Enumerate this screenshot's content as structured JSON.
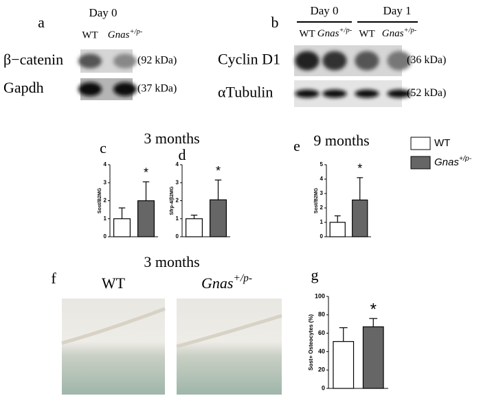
{
  "blots": [
    {
      "panel": "a",
      "days": [
        "Day 0"
      ],
      "lanes": [
        "WT",
        {
          "base": "Gnas",
          "sup": "+/p-"
        }
      ],
      "rows": [
        {
          "protein": "β−catenin",
          "size": "(92 kDa)"
        },
        {
          "protein": "Gapdh",
          "size": "(37 kDa)"
        }
      ]
    },
    {
      "panel": "b",
      "days": [
        "Day 0",
        "Day 1"
      ],
      "lanes": [
        "WT",
        {
          "base": "Gnas",
          "sup": "+/p-"
        },
        "WT",
        {
          "base": "Gnas",
          "sup": "+/p-"
        }
      ],
      "rows": [
        {
          "protein": "Cyclin D1",
          "size": "(36 kDa)"
        },
        {
          "protein": "αTubulin",
          "size": "(52 kDa)"
        }
      ]
    }
  ],
  "legend": [
    {
      "name": "WT",
      "color": "#ffffff"
    },
    {
      "name": {
        "base": "Gnas",
        "sup": "+/p-"
      },
      "color": "#666666"
    }
  ],
  "histology": {
    "panel": "f",
    "title": "3 months",
    "images": [
      "WT",
      {
        "base": "Gnas",
        "sup": "+/p-"
      }
    ]
  },
  "chart_data": [
    {
      "type": "bar",
      "panel": "c",
      "title": "3 months",
      "ylabel": "Sost/B2MG",
      "ylim": [
        0,
        4
      ],
      "yticks": [
        0,
        1,
        2,
        3,
        4
      ],
      "values": [
        1,
        2
      ],
      "errors": [
        0.6,
        1.05
      ],
      "annotation": "*"
    },
    {
      "type": "bar",
      "panel": "d",
      "ylabel": "Sfrp-4/β2MG",
      "ylim": [
        0,
        4
      ],
      "yticks": [
        0,
        1,
        2,
        3,
        4
      ],
      "values": [
        1,
        2.05
      ],
      "errors": [
        0.2,
        1.1
      ],
      "annotation": "*"
    },
    {
      "type": "bar",
      "panel": "e",
      "title": "9 months",
      "ylabel": "Sost/B2MG",
      "ylim": [
        0,
        5
      ],
      "yticks": [
        0,
        1,
        2,
        3,
        4,
        5
      ],
      "values": [
        1,
        2.55
      ],
      "errors": [
        0.45,
        1.55
      ],
      "annotation": "*"
    },
    {
      "type": "bar",
      "panel": "g",
      "ylabel": "Sost+ Osteocytes (%)",
      "ylim": [
        0,
        100
      ],
      "yticks": [
        0,
        20,
        40,
        60,
        80,
        100
      ],
      "values": [
        51,
        67
      ],
      "errors": [
        15,
        9
      ],
      "annotation": "*"
    }
  ]
}
